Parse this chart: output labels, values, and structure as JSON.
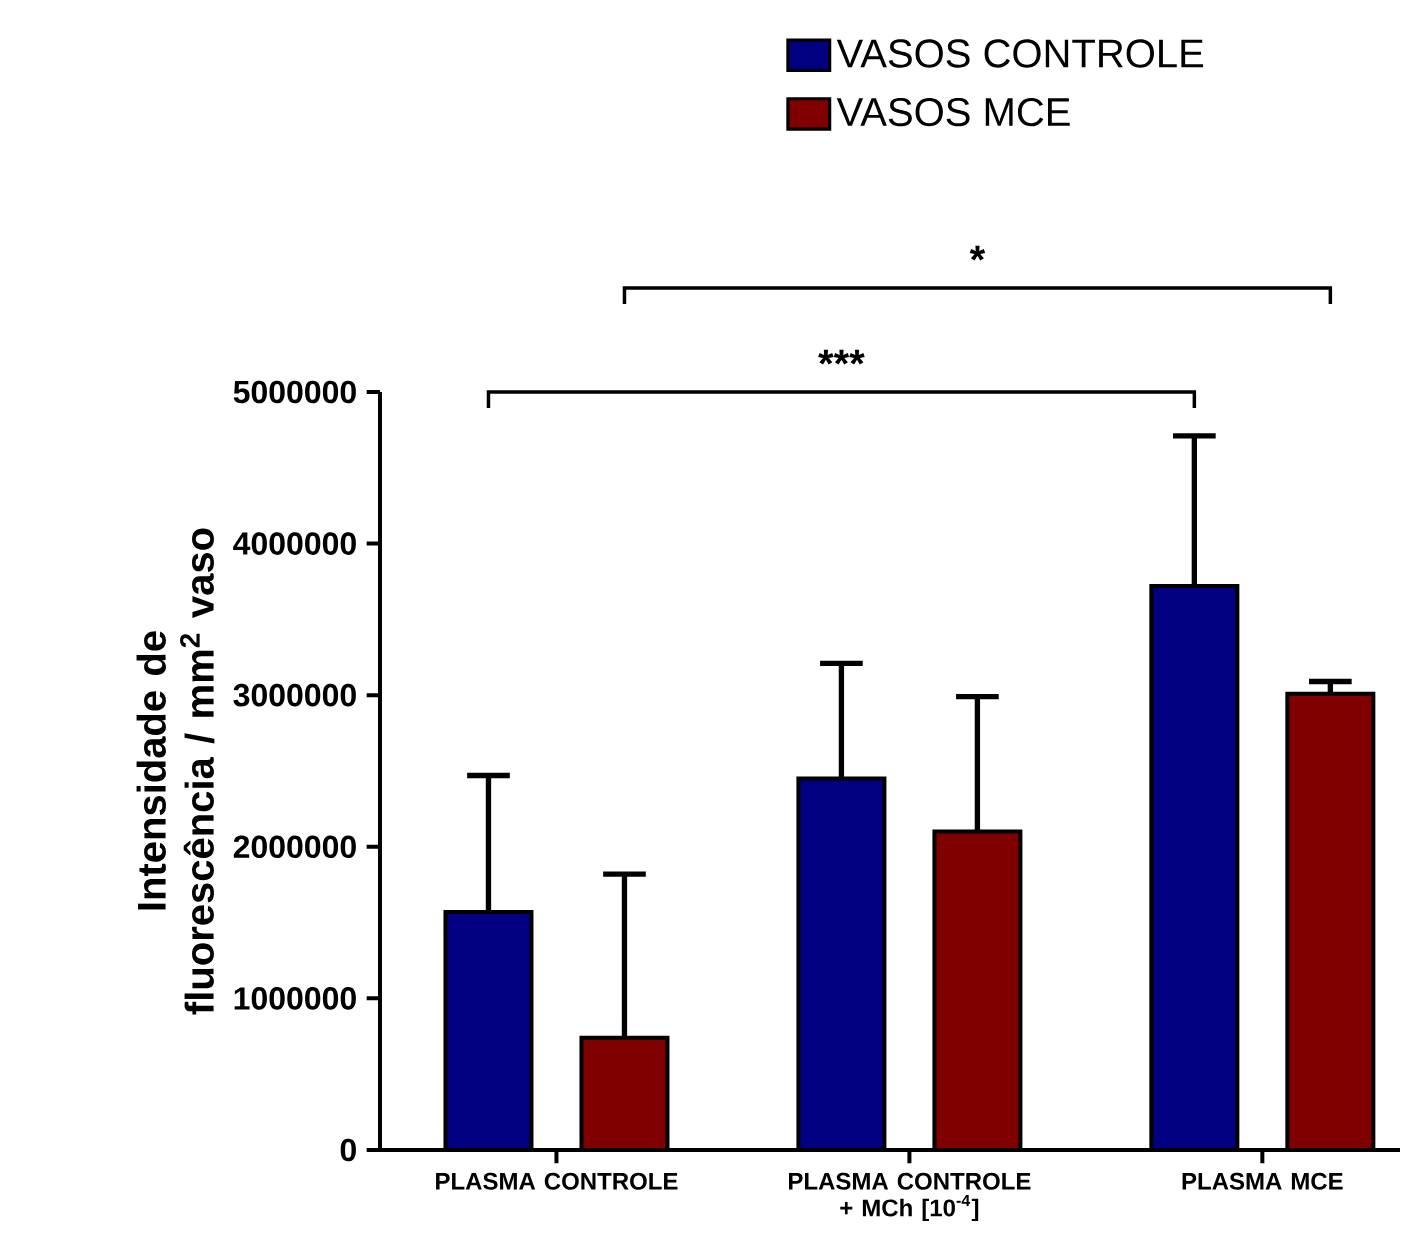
{
  "chart_data": {
    "type": "bar",
    "ylabel": "Intensidade de fluorescência / mm$^{2}$ vaso",
    "categories": [
      "PLASMA CONTROLE",
      "PLASMA CONTROLE + MCh [10$^{-4}$]",
      "PLASMA MCE"
    ],
    "series": [
      {
        "name": "VASOS CONTROLE",
        "color": "#000080",
        "values": [
          1570000,
          2450000,
          3720000
        ],
        "errors": [
          [
            1570000,
            2470000
          ],
          [
            2450000,
            3210000
          ],
          [
            3720000,
            4710000
          ]
        ]
      },
      {
        "name": "VASOS MCE",
        "color": "#800000",
        "values": [
          740000,
          2100000,
          3010000
        ],
        "errors": [
          [
            740000,
            1820000
          ],
          [
            2100000,
            2990000
          ],
          [
            3010000,
            3090000
          ]
        ]
      }
    ],
    "ylim": [
      0,
      5000000
    ],
    "yticks": [
      0,
      1000000,
      2000000,
      3000000,
      4000000,
      5000000
    ],
    "annotations": [
      "***",
      "*"
    ],
    "legend": "top"
  }
}
